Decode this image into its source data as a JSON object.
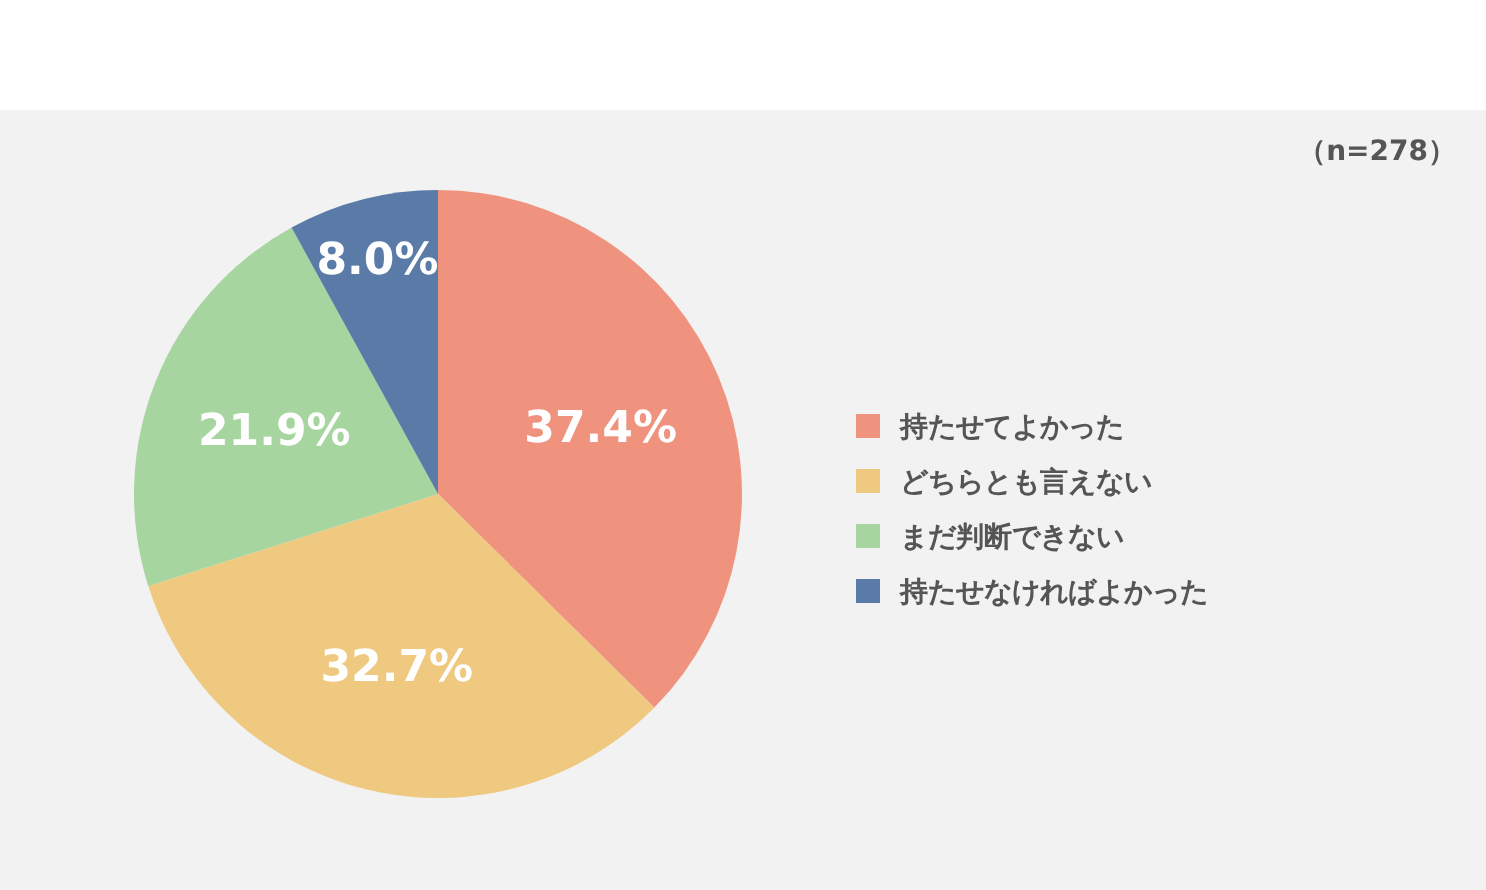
{
  "chart_data": {
    "type": "pie",
    "categories": [
      "持たせてよかった",
      "どちらとも言えない",
      "まだ判断できない",
      "持たせなければよかった"
    ],
    "values": [
      37.4,
      32.7,
      21.9,
      8.0
    ],
    "colors": [
      "#ef937f",
      "#efc980",
      "#a6d59f",
      "#5a7ba7"
    ],
    "value_labels": [
      "37.4%",
      "32.7%",
      "21.9%",
      "8.0%"
    ],
    "legend": "right",
    "annotations": [
      "（n=278）"
    ]
  }
}
